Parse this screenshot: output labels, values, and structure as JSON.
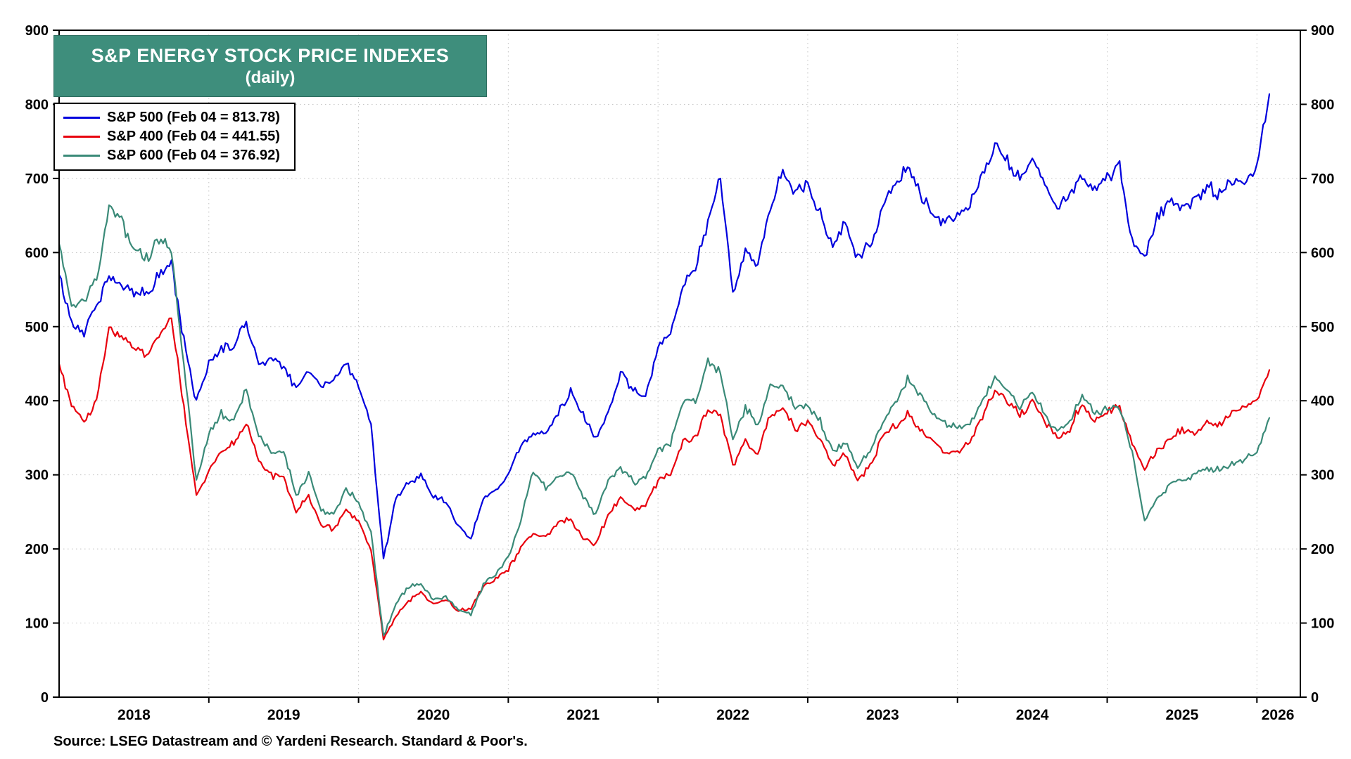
{
  "page": {
    "source_note": "Source: LSEG Datastream and © Yardeni Research. Standard & Poor's."
  },
  "chart_data": {
    "type": "line",
    "title": "S&P ENERGY STOCK PRICE INDEXES",
    "subtitle": "(daily)",
    "xlabel": "",
    "ylabel": "",
    "ylim": [
      0,
      900
    ],
    "y_ticks": [
      0,
      100,
      200,
      300,
      400,
      500,
      600,
      700,
      800,
      900
    ],
    "x_range_years": [
      2018.0,
      2026.29
    ],
    "x_tick_labels": [
      {
        "label": "2018",
        "pos": 2018.5
      },
      {
        "label": "2019",
        "pos": 2019.5
      },
      {
        "label": "2020",
        "pos": 2020.5
      },
      {
        "label": "2021",
        "pos": 2021.5
      },
      {
        "label": "2022",
        "pos": 2022.5
      },
      {
        "label": "2023",
        "pos": 2023.5
      },
      {
        "label": "2024",
        "pos": 2024.5
      },
      {
        "label": "2025",
        "pos": 2025.5
      },
      {
        "label": "2026",
        "pos": 2026.14
      }
    ],
    "grid": true,
    "legend_position": "top-left",
    "axis_sides": "left-and-right",
    "start_year": 2018.0,
    "points_per_year": 12,
    "sampling_note": "monthly estimates Jan 2018 - Jan 2026 plus final daily value Feb 04 2026",
    "noise_amplitude_pct": 1.4,
    "title_box_color": "#3E8E7C",
    "series": [
      {
        "name": "S&P 500",
        "label": "S&P 500 (Feb 04 = 813.78)",
        "last_value": 813.78,
        "color": "#0000DD",
        "values": [
          570,
          505,
          492,
          530,
          568,
          555,
          548,
          545,
          568,
          585,
          480,
          398,
          452,
          468,
          476,
          505,
          452,
          455,
          450,
          415,
          442,
          420,
          428,
          450,
          422,
          368,
          185,
          268,
          290,
          300,
          268,
          265,
          230,
          214,
          268,
          280,
          300,
          340,
          352,
          356,
          386,
          412,
          380,
          346,
          382,
          436,
          414,
          405,
          470,
          492,
          556,
          580,
          640,
          698,
          545,
          600,
          582,
          660,
          712,
          680,
          690,
          652,
          610,
          640,
          592,
          612,
          660,
          690,
          712,
          680,
          652,
          640,
          652,
          662,
          700,
          745,
          722,
          702,
          730,
          690,
          655,
          680,
          700,
          688,
          700,
          720,
          612,
          595,
          645,
          668,
          660,
          672,
          688,
          678,
          698,
          692,
          715,
          813.78
        ]
      },
      {
        "name": "S&P 400",
        "label": "S&P 400 (Feb 04 = 441.55)",
        "last_value": 441.55,
        "color": "#E8000D",
        "values": [
          450,
          395,
          370,
          400,
          497,
          488,
          470,
          462,
          490,
          515,
          390,
          275,
          305,
          332,
          342,
          368,
          320,
          300,
          295,
          250,
          272,
          232,
          226,
          252,
          238,
          200,
          78,
          108,
          130,
          142,
          126,
          132,
          116,
          120,
          150,
          160,
          172,
          202,
          222,
          216,
          236,
          240,
          216,
          206,
          246,
          270,
          254,
          260,
          292,
          300,
          342,
          352,
          390,
          382,
          310,
          346,
          330,
          380,
          390,
          360,
          372,
          350,
          312,
          330,
          292,
          312,
          350,
          366,
          382,
          360,
          346,
          330,
          332,
          346,
          380,
          415,
          400,
          380,
          400,
          372,
          350,
          362,
          400,
          372,
          386,
          392,
          340,
          308,
          332,
          346,
          362,
          356,
          370,
          366,
          382,
          392,
          402,
          441.55
        ]
      },
      {
        "name": "S&P 600",
        "label": "S&P 600 (Feb 04 = 376.92)",
        "last_value": 376.92,
        "color": "#3A8A78",
        "values": [
          612,
          528,
          535,
          565,
          660,
          640,
          605,
          590,
          620,
          600,
          450,
          292,
          355,
          382,
          372,
          415,
          352,
          330,
          332,
          272,
          302,
          252,
          246,
          282,
          262,
          222,
          82,
          125,
          150,
          152,
          132,
          136,
          118,
          112,
          152,
          166,
          188,
          238,
          305,
          282,
          296,
          306,
          272,
          246,
          292,
          310,
          290,
          296,
          332,
          342,
          402,
          400,
          455,
          440,
          348,
          392,
          366,
          420,
          420,
          390,
          392,
          372,
          332,
          342,
          312,
          332,
          372,
          400,
          430,
          410,
          382,
          370,
          362,
          372,
          400,
          430,
          415,
          390,
          415,
          380,
          360,
          372,
          410,
          380,
          388,
          392,
          330,
          238,
          268,
          286,
          292,
          300,
          310,
          306,
          316,
          322,
          332,
          376.92
        ]
      }
    ]
  }
}
